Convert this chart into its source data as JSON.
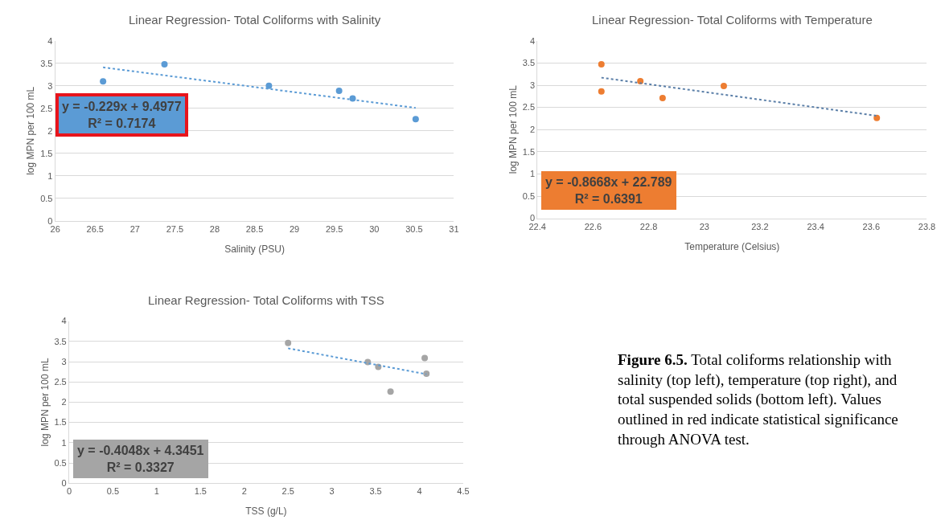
{
  "chart_data": [
    {
      "type": "scatter",
      "title": "Linear Regression- Total Coliforms with Salinity",
      "xlabel": "Salinity (PSU)",
      "ylabel": "log MPN per 100 mL",
      "xlim": [
        26,
        31
      ],
      "xticks": [
        26,
        26.5,
        27,
        27.5,
        28,
        28.5,
        29,
        29.5,
        30,
        30.5,
        31
      ],
      "ylim": [
        0,
        4
      ],
      "yticks": [
        0,
        0.5,
        1,
        1.5,
        2,
        2.5,
        3,
        3.5,
        4
      ],
      "grid": "y",
      "series": [
        {
          "marker": "circle",
          "color": "#5b9bd5",
          "x": [
            26.6,
            27.37,
            28.68,
            29.56,
            29.73,
            30.52
          ],
          "values": [
            3.1,
            3.48,
            3.0,
            2.89,
            2.72,
            2.26
          ]
        },
        {
          "type": "line",
          "line_style": "dotted",
          "color": "#5b9bd5",
          "x": [
            26.6,
            30.52
          ],
          "values": [
            3.41,
            2.51
          ]
        }
      ],
      "annotations": [
        "y = -0.229x + 9.4977\nR² = 0.7174"
      ]
    },
    {
      "type": "scatter",
      "title": "Linear Regression- Total Coliforms with Temperature",
      "xlabel": "Temperature (Celsius)",
      "ylabel": "log MPN per 100 mL",
      "xlim": [
        22.4,
        23.8
      ],
      "xticks": [
        22.4,
        22.6,
        22.8,
        23,
        23.2,
        23.4,
        23.6,
        23.8
      ],
      "ylim": [
        0,
        4
      ],
      "yticks": [
        0,
        0.5,
        1,
        1.5,
        2,
        2.5,
        3,
        3.5,
        4
      ],
      "grid": "y",
      "series": [
        {
          "marker": "circle",
          "color": "#ed7d31",
          "x": [
            22.63,
            22.63,
            22.77,
            22.85,
            23.07,
            23.62
          ],
          "values": [
            3.47,
            2.86,
            3.09,
            2.71,
            2.98,
            2.26
          ]
        },
        {
          "type": "line",
          "line_style": "dotted",
          "color": "#5b7fa8",
          "x": [
            22.63,
            23.62
          ],
          "values": [
            3.17,
            2.31
          ]
        }
      ],
      "annotations": [
        "y = -0.8668x + 22.789\nR² = 0.6391"
      ]
    },
    {
      "type": "scatter",
      "title": "Linear Regression- Total Coliforms with TSS",
      "xlabel": "TSS (g/L)",
      "ylabel": "log MPN per 100 mL",
      "xlim": [
        0,
        4.5
      ],
      "xticks": [
        0,
        0.5,
        1,
        1.5,
        2,
        2.5,
        3,
        3.5,
        4,
        4.5
      ],
      "ylim": [
        0,
        4
      ],
      "yticks": [
        0,
        0.5,
        1,
        1.5,
        2,
        2.5,
        3,
        3.5,
        4
      ],
      "grid": "y",
      "series": [
        {
          "marker": "circle",
          "color": "#a5a5a5",
          "x": [
            2.5,
            3.41,
            3.53,
            3.67,
            4.06,
            4.08
          ],
          "values": [
            3.46,
            2.99,
            2.87,
            2.26,
            3.09,
            2.7
          ]
        },
        {
          "type": "line",
          "line_style": "dotted",
          "color": "#5b9bd5",
          "x": [
            2.5,
            4.08
          ],
          "values": [
            3.33,
            2.69
          ]
        }
      ],
      "annotations": [
        "y = -0.4048x + 4.3451\nR² = 0.3327"
      ]
    },
    {
      "type": "other",
      "annotations": [
        "Figure 6.5.",
        "Total coliforms relationship with\nsalinity (top left), temperature (top right), and\ntotal suspended solids (bottom left). Values\noutlined in red indicate statistical significance\nthrough ANOVA test."
      ]
    }
  ]
}
